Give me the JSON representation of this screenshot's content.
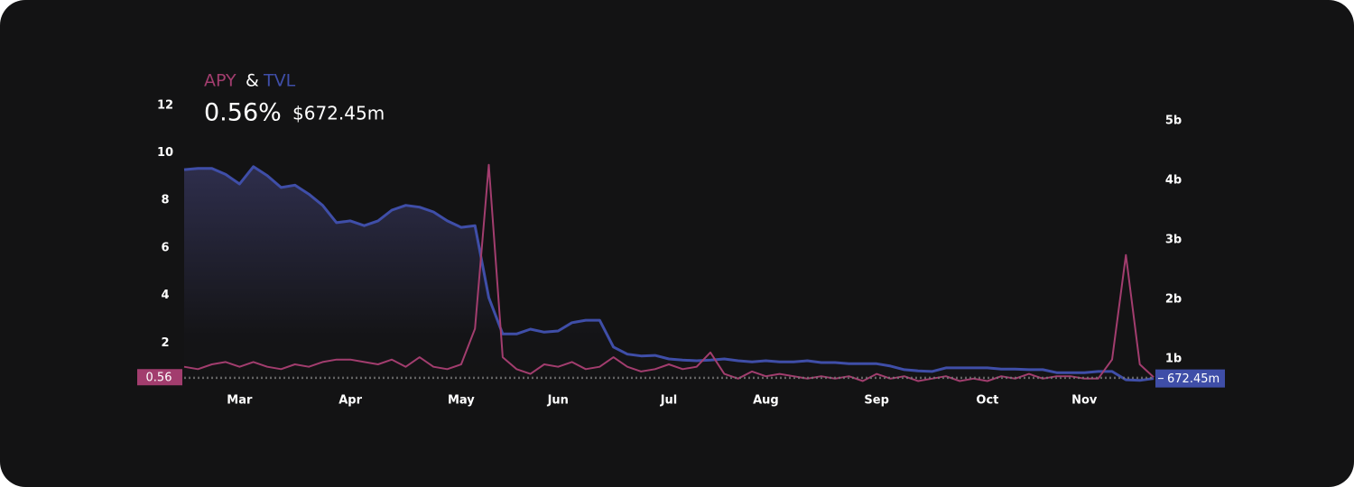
{
  "chart_data": {
    "type": "line",
    "legend": {
      "joiner": "&"
    },
    "header": {
      "apy": "0.56%",
      "tvl": "$672.45m"
    },
    "categories": [
      null,
      null,
      null,
      null,
      "Mar",
      null,
      null,
      null,
      null,
      null,
      null,
      null,
      "Apr",
      null,
      null,
      null,
      null,
      null,
      null,
      null,
      "May",
      null,
      null,
      null,
      null,
      null,
      null,
      "Jun",
      null,
      null,
      null,
      null,
      null,
      null,
      null,
      "Jul",
      null,
      null,
      null,
      null,
      null,
      null,
      "Aug",
      null,
      null,
      null,
      null,
      null,
      null,
      null,
      "Sep",
      null,
      null,
      null,
      null,
      null,
      null,
      null,
      "Oct",
      null,
      null,
      null,
      null,
      null,
      null,
      "Nov",
      null,
      null,
      null,
      null,
      null
    ],
    "series": [
      {
        "name": "APY",
        "color": "#a23d6e",
        "axis": "y",
        "values": [
          1.0,
          0.9,
          1.1,
          1.2,
          1.0,
          1.2,
          1.0,
          0.9,
          1.1,
          1.0,
          1.2,
          1.3,
          1.3,
          1.2,
          1.1,
          1.3,
          1.0,
          1.4,
          1.0,
          0.9,
          1.1,
          2.6,
          9.5,
          1.4,
          0.9,
          0.7,
          1.1,
          1.0,
          1.2,
          0.9,
          1.0,
          1.4,
          1.0,
          0.8,
          0.9,
          1.1,
          0.9,
          1.0,
          1.6,
          0.7,
          0.5,
          0.8,
          0.6,
          0.7,
          0.6,
          0.5,
          0.6,
          0.5,
          0.6,
          0.4,
          0.7,
          0.5,
          0.6,
          0.4,
          0.5,
          0.6,
          0.4,
          0.5,
          0.4,
          0.6,
          0.5,
          0.7,
          0.5,
          0.6,
          0.6,
          0.5,
          0.5,
          1.3,
          5.7,
          1.1,
          0.56
        ]
      },
      {
        "name": "TVL",
        "color": "#3f4ea8",
        "axis": "y2",
        "values": [
          4180000000,
          4200000000,
          4200000000,
          4100000000,
          3940000000,
          4230000000,
          4080000000,
          3880000000,
          3920000000,
          3770000000,
          3580000000,
          3290000000,
          3320000000,
          3240000000,
          3320000000,
          3500000000,
          3580000000,
          3550000000,
          3470000000,
          3320000000,
          3210000000,
          3240000000,
          2030000000,
          1420000000,
          1420000000,
          1500000000,
          1450000000,
          1470000000,
          1610000000,
          1650000000,
          1650000000,
          1200000000,
          1080000000,
          1050000000,
          1060000000,
          1000000000,
          980000000,
          970000000,
          980000000,
          1000000000,
          970000000,
          950000000,
          970000000,
          950000000,
          950000000,
          970000000,
          940000000,
          940000000,
          920000000,
          920000000,
          920000000,
          880000000,
          820000000,
          800000000,
          790000000,
          850000000,
          850000000,
          850000000,
          850000000,
          830000000,
          830000000,
          820000000,
          820000000,
          770000000,
          770000000,
          770000000,
          790000000,
          790000000,
          650000000,
          640000000,
          672450000
        ]
      }
    ],
    "ylim": [
      0,
      12.6
    ],
    "yticks": [
      2,
      4,
      6,
      8,
      10,
      12
    ],
    "y2lim": [
      470000000,
      5500000000
    ],
    "y2ticks": [
      {
        "value": 1000000000,
        "label": "1b"
      },
      {
        "value": 2000000000,
        "label": "2b"
      },
      {
        "value": 3000000000,
        "label": "3b"
      },
      {
        "value": 4000000000,
        "label": "4b"
      },
      {
        "value": 5000000000,
        "label": "5b"
      }
    ],
    "current_badges": [
      {
        "axis": "y",
        "value": 0.56,
        "label": "0.56"
      },
      {
        "axis": "y2",
        "value": 672450000,
        "label": "672.45m"
      }
    ]
  }
}
